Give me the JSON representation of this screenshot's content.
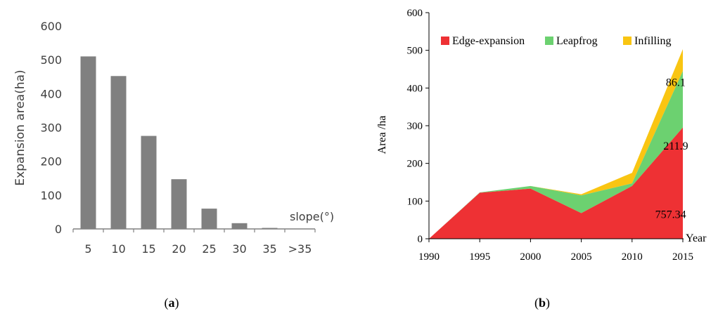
{
  "panels": [
    {
      "label_open": "(",
      "label_letter": "a",
      "label_close": ")"
    },
    {
      "label_open": "(",
      "label_letter": "b",
      "label_close": ")"
    }
  ],
  "chart_data": [
    {
      "type": "bar",
      "ylabel": "Expansion area(ha)",
      "xlabel": "slope(°)",
      "categories": [
        "5",
        "10",
        "15",
        "20",
        "25",
        "30",
        "35",
        ">35"
      ],
      "values": [
        510,
        452,
        275,
        147,
        60,
        17,
        3,
        0
      ],
      "ylim": [
        0,
        600
      ],
      "yticks": [
        0,
        100,
        200,
        300,
        400,
        500,
        600
      ],
      "grid": false,
      "colors": {
        "bar": "#808080"
      }
    },
    {
      "type": "area",
      "stacked": true,
      "ylabel": "Area /ha",
      "xlabel": "Year",
      "x": [
        1990,
        1995,
        2000,
        2005,
        2010,
        2015
      ],
      "ylim": [
        0,
        600
      ],
      "yticks": [
        0,
        100,
        200,
        300,
        400,
        500,
        600
      ],
      "grid": false,
      "legend_position": "top",
      "series": [
        {
          "name": "Edge-expansion",
          "values": [
            0,
            122,
            133,
            68,
            140,
            295
          ],
          "color": "#EE3134"
        },
        {
          "name": "Leapfrog",
          "values": [
            0,
            1,
            7,
            47,
            7,
            150
          ],
          "color": "#6CD170"
        },
        {
          "name": "Infilling",
          "values": [
            0,
            0,
            0,
            3,
            28,
            58
          ],
          "color": "#F9C512"
        }
      ],
      "annotations": [
        {
          "text": "86.1",
          "x": 2014.3,
          "y": 405
        },
        {
          "text": "211.9",
          "x": 2014.3,
          "y": 237
        },
        {
          "text": "757.34",
          "x": 2013.8,
          "y": 55
        }
      ]
    }
  ]
}
